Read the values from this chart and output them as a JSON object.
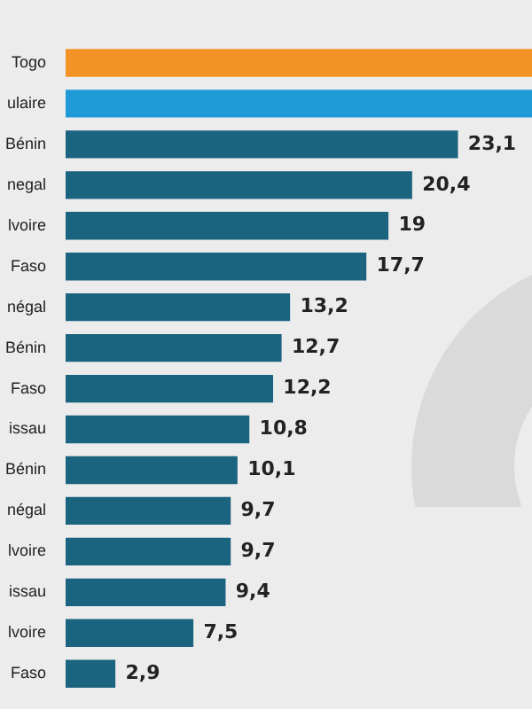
{
  "chart_data": {
    "type": "bar",
    "orientation": "horizontal",
    "categories": [
      "Togo",
      "ulaire",
      "Bénin",
      "negal",
      "lvoire",
      "Faso",
      "négal",
      "Bénin",
      "Faso",
      "issau",
      "Bénin",
      "négal",
      "lvoire",
      "issau",
      "lvoire",
      "Faso"
    ],
    "values": [
      27.5,
      27.5,
      23.1,
      20.4,
      19,
      17.7,
      13.2,
      12.7,
      12.2,
      10.8,
      10.1,
      9.7,
      9.7,
      9.4,
      7.5,
      2.9
    ],
    "colors": [
      "#f39325",
      "#1e9ad6",
      "#1a6480",
      "#1a6480",
      "#1a6480",
      "#1a6480",
      "#1a6480",
      "#1a6480",
      "#1a6480",
      "#1a6480",
      "#1a6480",
      "#1a6480",
      "#1a6480",
      "#1a6480",
      "#1a6480",
      "#1a6480"
    ],
    "value_labels": [
      null,
      null,
      "23,1",
      "20,4",
      "19",
      "17,7",
      "13,2",
      "12,7",
      "12,2",
      "10,8",
      "10,1",
      "9,7",
      "9,7",
      "9,4",
      "7,5",
      "2,9"
    ],
    "xlim": [
      0,
      27.5
    ],
    "tick_labels": "y",
    "legend": false
  }
}
